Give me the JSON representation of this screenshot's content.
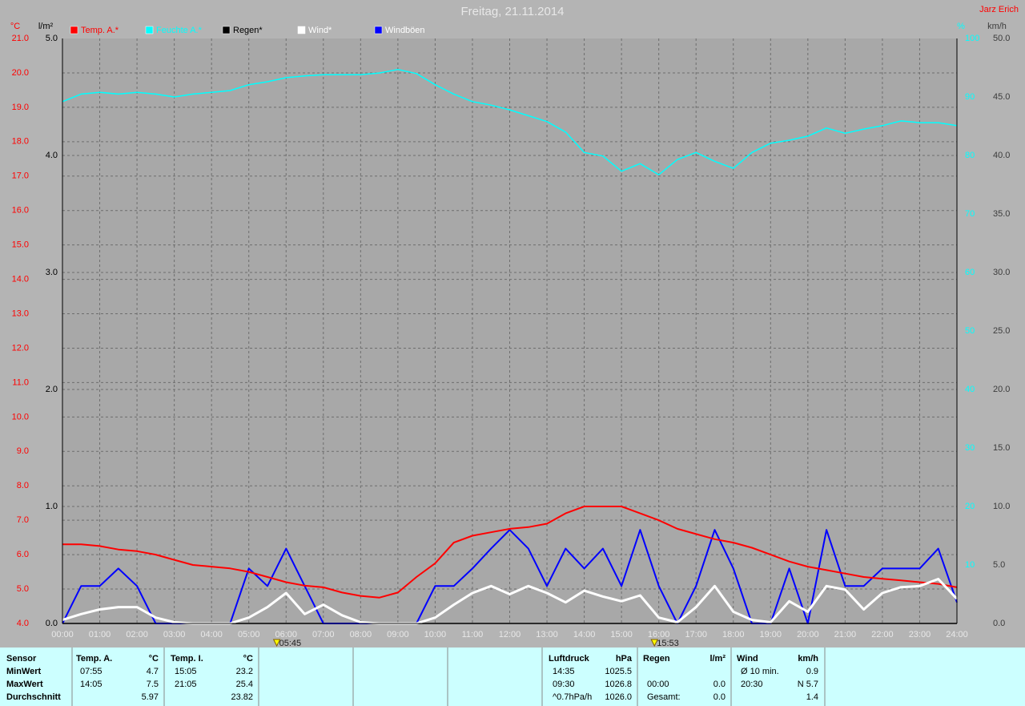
{
  "chart_data": {
    "type": "line",
    "title": "Freitag, 21.11.2014",
    "author": "Jarz Erich",
    "grid": true,
    "xlim": [
      0,
      24
    ],
    "xticks": [
      {
        "value": 0,
        "label": "00:00"
      },
      {
        "value": 1,
        "label": "01:00"
      },
      {
        "value": 2,
        "label": "02:00"
      },
      {
        "value": 3,
        "label": "03:00"
      },
      {
        "value": 4,
        "label": "04:00"
      },
      {
        "value": 5,
        "label": "05:00"
      },
      {
        "value": 6,
        "label": "06:00"
      },
      {
        "value": 7,
        "label": "07:00"
      },
      {
        "value": 8,
        "label": "08:00"
      },
      {
        "value": 9,
        "label": "09:00"
      },
      {
        "value": 10,
        "label": "10:00"
      },
      {
        "value": 11,
        "label": "11:00"
      },
      {
        "value": 12,
        "label": "12:00"
      },
      {
        "value": 13,
        "label": "13:00"
      },
      {
        "value": 14,
        "label": "14:00"
      },
      {
        "value": 15,
        "label": "15:00"
      },
      {
        "value": 16,
        "label": "16:00"
      },
      {
        "value": 17,
        "label": "17:00"
      },
      {
        "value": 18,
        "label": "18:00"
      },
      {
        "value": 19,
        "label": "19:00"
      },
      {
        "value": 20,
        "label": "20:00"
      },
      {
        "value": 21,
        "label": "21:00"
      },
      {
        "value": 22,
        "label": "22:00"
      },
      {
        "value": 23,
        "label": "23:00"
      },
      {
        "value": 24,
        "label": "24:00"
      }
    ],
    "sun_markers": [
      {
        "value": 5.75,
        "label": "05:45"
      },
      {
        "value": 15.8833,
        "label": "15:53"
      }
    ],
    "y_axes": [
      {
        "unit": "°C",
        "color": "#ff0000",
        "lim": [
          4,
          21
        ],
        "ticks": [
          {
            "value": 4,
            "label": "4.0"
          },
          {
            "value": 5,
            "label": "5.0"
          },
          {
            "value": 6,
            "label": "6.0"
          },
          {
            "value": 7,
            "label": "7.0"
          },
          {
            "value": 8,
            "label": "8.0"
          },
          {
            "value": 9,
            "label": "9.0"
          },
          {
            "value": 10,
            "label": "10.0"
          },
          {
            "value": 11,
            "label": "11.0"
          },
          {
            "value": 12,
            "label": "12.0"
          },
          {
            "value": 13,
            "label": "13.0"
          },
          {
            "value": 14,
            "label": "14.0"
          },
          {
            "value": 15,
            "label": "15.0"
          },
          {
            "value": 16,
            "label": "16.0"
          },
          {
            "value": 17,
            "label": "17.0"
          },
          {
            "value": 18,
            "label": "18.0"
          },
          {
            "value": 19,
            "label": "19.0"
          },
          {
            "value": 20,
            "label": "20.0"
          },
          {
            "value": 21,
            "label": "21.0"
          }
        ]
      },
      {
        "unit": "l/m²",
        "color": "#000000",
        "lim": [
          0,
          5
        ],
        "ticks": [
          {
            "value": 0,
            "label": "0.0"
          },
          {
            "value": 1,
            "label": "1.0"
          },
          {
            "value": 2,
            "label": "2.0"
          },
          {
            "value": 3,
            "label": "3.0"
          },
          {
            "value": 4,
            "label": "4.0"
          },
          {
            "value": 5,
            "label": "5.0"
          }
        ]
      },
      {
        "unit": "%",
        "color": "#00ffff",
        "lim": [
          0,
          100
        ],
        "ticks": [
          10,
          20,
          30,
          40,
          50,
          60,
          70,
          80,
          90,
          100
        ]
      },
      {
        "unit": "km/h",
        "color": "#3c3c3c",
        "lim": [
          0,
          50
        ],
        "ticks": [
          {
            "value": 0,
            "label": "0.0"
          },
          {
            "value": 5,
            "label": "5.0"
          },
          {
            "value": 10,
            "label": "10.0"
          },
          {
            "value": 15,
            "label": "15.0"
          },
          {
            "value": 20,
            "label": "20.0"
          },
          {
            "value": 25,
            "label": "25.0"
          },
          {
            "value": 30,
            "label": "30.0"
          },
          {
            "value": 35,
            "label": "35.0"
          },
          {
            "value": 40,
            "label": "40.0"
          },
          {
            "value": 45,
            "label": "45.0"
          },
          {
            "value": 50,
            "label": "50.0"
          }
        ]
      }
    ],
    "x": [
      0,
      0.5,
      1,
      1.5,
      2,
      2.5,
      3,
      3.5,
      4,
      4.5,
      5,
      5.5,
      6,
      6.5,
      7,
      7.5,
      8,
      8.5,
      9,
      9.5,
      10,
      10.5,
      11,
      11.5,
      12,
      12.5,
      13,
      13.5,
      14,
      14.5,
      15,
      15.5,
      16,
      16.5,
      17,
      17.5,
      18,
      18.5,
      19,
      19.5,
      20,
      20.5,
      21,
      21.5,
      22,
      22.5,
      23,
      23.5,
      24
    ],
    "series": [
      {
        "name": "Temp. A.*",
        "color": "#ff0000",
        "axis": 0,
        "values": [
          6.3,
          6.3,
          6.25,
          6.15,
          6.1,
          6.0,
          5.85,
          5.7,
          5.65,
          5.6,
          5.5,
          5.35,
          5.2,
          5.1,
          5.05,
          4.9,
          4.8,
          4.75,
          4.9,
          5.35,
          5.75,
          6.35,
          6.55,
          6.65,
          6.75,
          6.8,
          6.9,
          7.2,
          7.4,
          7.4,
          7.4,
          7.2,
          7.0,
          6.75,
          6.6,
          6.45,
          6.35,
          6.2,
          6.0,
          5.8,
          5.65,
          5.55,
          5.45,
          5.35,
          5.3,
          5.25,
          5.2,
          5.15,
          5.05
        ]
      },
      {
        "name": "Feuchte A.*",
        "color": "#00ffff",
        "axis": 2,
        "values": [
          89.2,
          90.5,
          90.8,
          90.5,
          90.8,
          90.5,
          90,
          90.5,
          90.8,
          91.1,
          92.1,
          92.6,
          93.3,
          93.6,
          93.8,
          93.8,
          93.8,
          94.1,
          94.7,
          94.0,
          92.1,
          90.5,
          89.2,
          88.6,
          87.8,
          86.8,
          85.8,
          84.0,
          80.5,
          79.9,
          77.3,
          78.6,
          76.7,
          79.3,
          80.5,
          79.0,
          77.8,
          80.5,
          82.1,
          82.6,
          83.3,
          84.7,
          83.8,
          84.5,
          85.1,
          85.9,
          85.6,
          85.6,
          85.1
        ]
      },
      {
        "name": "Regen*",
        "color": "#000000",
        "axis": 1,
        "values": [
          0,
          0,
          0,
          0,
          0,
          0,
          0,
          0,
          0,
          0,
          0,
          0,
          0,
          0,
          0,
          0,
          0,
          0,
          0,
          0,
          0,
          0,
          0,
          0,
          0,
          0,
          0,
          0,
          0,
          0,
          0,
          0,
          0,
          0,
          0,
          0,
          0,
          0,
          0,
          0,
          0,
          0,
          0,
          0,
          0,
          0,
          0,
          0,
          0
        ]
      },
      {
        "name": "Wind*",
        "color": "#ffffff",
        "axis": 3,
        "values": [
          0.3,
          0.8,
          1.2,
          1.4,
          1.4,
          0.5,
          0.1,
          0,
          0,
          0,
          0.5,
          1.4,
          2.6,
          0.8,
          1.6,
          0.7,
          0.1,
          0,
          0,
          0,
          0.5,
          1.6,
          2.6,
          3.2,
          2.5,
          3.2,
          2.6,
          1.8,
          2.8,
          2.3,
          1.9,
          2.4,
          0.5,
          0.1,
          1.4,
          3.2,
          1.0,
          0.3,
          0.1,
          1.9,
          1.0,
          3.2,
          2.9,
          1.2,
          2.6,
          3.1,
          3.2,
          3.8,
          2.1
        ]
      },
      {
        "name": "Windböen",
        "color": "#0000ff",
        "axis": 3,
        "values": [
          0,
          3.2,
          3.2,
          4.7,
          3.2,
          0,
          0,
          0,
          0,
          0,
          4.7,
          3.2,
          6.4,
          3.2,
          0,
          0,
          0,
          0,
          0,
          0,
          3.2,
          3.2,
          4.7,
          6.4,
          8.0,
          6.4,
          3.2,
          6.4,
          4.7,
          6.4,
          3.2,
          8.0,
          3.2,
          0,
          3.2,
          8.0,
          4.7,
          0,
          0,
          4.7,
          0,
          8.0,
          3.2,
          3.2,
          4.7,
          4.7,
          4.7,
          6.4,
          1.8
        ]
      }
    ]
  },
  "table": {
    "columns": [
      {
        "header": "Sensor",
        "rows": [
          "MinWert",
          "MaxWert",
          "Durchschnitt"
        ]
      },
      {
        "header": "Temp. A.",
        "unit": "°C",
        "rows": [
          {
            "time": "07:55",
            "value": "4.7"
          },
          {
            "time": "14:05",
            "value": "7.5"
          },
          {
            "value": "5.97"
          }
        ]
      },
      {
        "header": "Temp. I.",
        "unit": "°C",
        "rows": [
          {
            "time": "15:05",
            "value": "23.2"
          },
          {
            "time": "21:05",
            "value": "25.4"
          },
          {
            "value": "23.82"
          }
        ]
      },
      {
        "header": "Luftdruck",
        "unit": "hPa",
        "rows": [
          {
            "time": "14:35",
            "value": "1025.5"
          },
          {
            "time": "09:30",
            "value": "1026.8"
          },
          {
            "time": "^0.7hPa/h",
            "value": "1026.0"
          }
        ]
      },
      {
        "header": "Regen",
        "unit": "l/m²",
        "rows": [
          null,
          {
            "time": "00:00",
            "value": "0.0"
          },
          {
            "time": "Gesamt:",
            "value": "0.0"
          }
        ]
      },
      {
        "header": "Wind",
        "unit": "km/h",
        "rows": [
          {
            "time": "Ø 10 min.",
            "value": "0.9"
          },
          {
            "time": "20:30",
            "value": "N 5.7"
          },
          {
            "value": "1.4"
          }
        ]
      }
    ]
  }
}
